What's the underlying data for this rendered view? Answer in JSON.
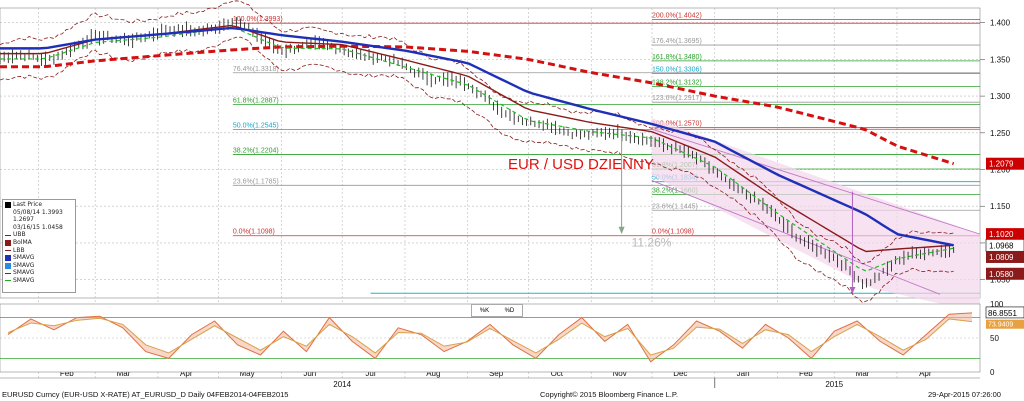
{
  "chart_data": {
    "type": "line",
    "title": "EUR / USD DZIENNY",
    "instrument": "EURUSD Curncy (EUR-USD X-RATE) AT_EURUSD_D  Daily 04FEB2014-04FEB2015",
    "copyright": "Copyright© 2015 Bloomberg Finance L.P.",
    "timestamp": "29-Apr-2015 07:26:00",
    "x_ticks": [
      "Feb",
      "Mar",
      "Apr",
      "May",
      "Jun",
      "Jul",
      "Aug",
      "Sep",
      "Oct",
      "Nov",
      "Dec",
      "Jan",
      "Feb",
      "Mar",
      "Apr"
    ],
    "year_labels": [
      "2014",
      "2015"
    ],
    "y_ticks": [
      "1.400",
      "1.350",
      "1.300",
      "1.250",
      "1.200",
      "1.150",
      "1.100",
      "1.050"
    ],
    "ylim": [
      1.025,
      1.42
    ],
    "price": {
      "dates": [
        "2014-02-04",
        "2014-03-01",
        "2014-04-01",
        "2014-05-08",
        "2014-06-01",
        "2014-07-01",
        "2014-08-01",
        "2014-09-01",
        "2014-10-01",
        "2014-11-01",
        "2014-12-01",
        "2015-01-01",
        "2015-02-01",
        "2015-03-16",
        "2015-04-01",
        "2015-04-29"
      ],
      "values": [
        1.352,
        1.377,
        1.384,
        1.3993,
        1.366,
        1.367,
        1.339,
        1.313,
        1.262,
        1.249,
        1.243,
        1.2,
        1.132,
        1.0458,
        1.075,
        1.0968
      ]
    },
    "series": [
      {
        "name": "SMAVG (blue)",
        "values": [
          1.365,
          1.377,
          1.384,
          1.393,
          1.383,
          1.374,
          1.362,
          1.345,
          1.305,
          1.282,
          1.262,
          1.238,
          1.193,
          1.14,
          1.112,
          1.0968
        ]
      },
      {
        "name": "SMAVG (red dashed)",
        "values": [
          1.34,
          1.348,
          1.355,
          1.363,
          1.367,
          1.368,
          1.367,
          1.361,
          1.35,
          1.332,
          1.318,
          1.3,
          1.285,
          1.255,
          1.232,
          1.2079
        ]
      }
    ],
    "price_labels": [
      {
        "value": "1.2079",
        "color": "#cc0000"
      },
      {
        "value": "1.1020",
        "color": "#cc0000"
      },
      {
        "value": "1.0968",
        "color": "#000000"
      },
      {
        "value": "1.0809",
        "color": "#8b1a1a"
      },
      {
        "value": "1.0580",
        "color": "#8b1a1a"
      }
    ],
    "fibonacci_left": [
      {
        "label": "100.0%(1.3993)",
        "value": 1.3993,
        "color": "#cc3333"
      },
      {
        "label": "76.4%(1.3318)",
        "value": 1.3318,
        "color": "#999999"
      },
      {
        "label": "61.8%(1.2887)",
        "value": 1.2887,
        "color": "#2ca02c"
      },
      {
        "label": "50.0%(1.2545)",
        "value": 1.2545,
        "color": "#17a6c9"
      },
      {
        "label": "38.2%(1.2204)",
        "value": 1.2204,
        "color": "#2ca02c"
      },
      {
        "label": "23.6%(1.1785)",
        "value": 1.1785,
        "color": "#999999"
      },
      {
        "label": "0.0%(1.1098)",
        "value": 1.1098,
        "color": "#cc3333"
      }
    ],
    "fibonacci_right": [
      {
        "label": "200.0%(1.4042)",
        "value": 1.4042,
        "color": "#cc3333"
      },
      {
        "label": "176.4%(1.3695)",
        "value": 1.3695,
        "color": "#999999"
      },
      {
        "label": "161.8%(1.3480)",
        "value": 1.348,
        "color": "#2ca02c"
      },
      {
        "label": "150.0%(1.3306)",
        "value": 1.3306,
        "color": "#17a6c9"
      },
      {
        "label": "138.2%(1.3132)",
        "value": 1.3132,
        "color": "#2ca02c"
      },
      {
        "label": "123.6%(1.2917)",
        "value": 1.2917,
        "color": "#999999"
      },
      {
        "label": "100.0%(1.2570)",
        "value": 1.257,
        "color": "#cc3333"
      },
      {
        "label": "61.8%(1.2007)",
        "value": 1.2007,
        "color": "#2ca02c"
      },
      {
        "label": "50.0%(1.1834)",
        "value": 1.1834,
        "color": "#17a6c9"
      },
      {
        "label": "38.2%(1.1660)",
        "value": 1.166,
        "color": "#2ca02c"
      },
      {
        "label": "23.6%(1.1445)",
        "value": 1.1445,
        "color": "#999999"
      },
      {
        "label": "0.0%(1.1098)",
        "value": 1.1098,
        "color": "#cc3333"
      }
    ],
    "annotation": "11.26%",
    "legend": {
      "header": "Last Price",
      "items": [
        "05/08/14 1.3993",
        "1.2697",
        "03/16/15 1.0458",
        "UBB",
        "BolMA",
        "LBB",
        "SMAVG",
        "SMAVG",
        "SMAVG",
        "SMAVG"
      ]
    },
    "stochastic": {
      "legend": [
        "%K",
        "%D"
      ],
      "y_ticks": [
        "100",
        "50",
        "0"
      ],
      "ylim": [
        0,
        100
      ],
      "last_values": [
        "86.8551",
        "73.9409"
      ],
      "k_values": [
        55,
        78,
        62,
        80,
        82,
        65,
        30,
        20,
        55,
        75,
        40,
        25,
        60,
        30,
        80,
        45,
        20,
        65,
        55,
        30,
        45,
        70,
        40,
        20,
        55,
        80,
        45,
        70,
        15,
        40,
        75,
        60,
        35,
        70,
        50,
        20,
        60,
        75,
        45,
        25,
        55,
        85,
        87
      ],
      "d_values": [
        58,
        72,
        68,
        76,
        79,
        70,
        40,
        28,
        48,
        68,
        50,
        32,
        52,
        38,
        70,
        52,
        28,
        58,
        57,
        38,
        44,
        64,
        46,
        28,
        48,
        72,
        52,
        64,
        25,
        35,
        66,
        63,
        42,
        62,
        55,
        30,
        52,
        70,
        52,
        32,
        48,
        78,
        74
      ]
    }
  }
}
